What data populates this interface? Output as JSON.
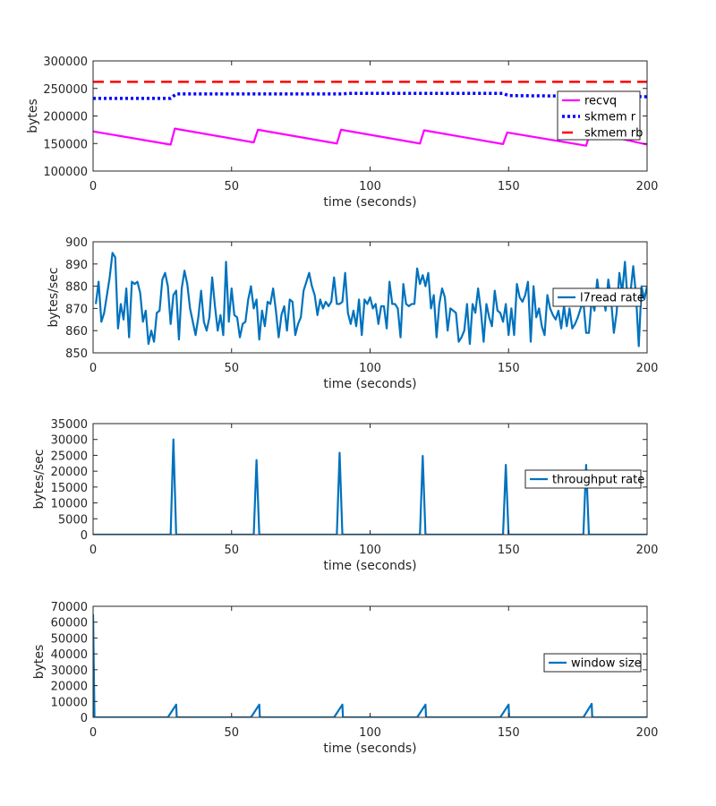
{
  "chart_data": [
    {
      "type": "line",
      "xlabel": "time (seconds)",
      "ylabel": "bytes",
      "xlim": [
        0,
        200
      ],
      "ylim": [
        100000,
        300000
      ],
      "xticks": [
        0,
        50,
        100,
        150,
        200
      ],
      "yticks": [
        100000,
        150000,
        200000,
        250000,
        300000
      ],
      "grid": false,
      "legend_position": "right",
      "series": [
        {
          "name": "recvq",
          "color": "#ff00ff",
          "style": "solid",
          "x": [
            0,
            28,
            29.5,
            58,
            59.5,
            88,
            89.5,
            118,
            119.5,
            148,
            149.5,
            178,
            179.5,
            200
          ],
          "y": [
            172000,
            148000,
            177000,
            152000,
            175000,
            150000,
            175000,
            150000,
            174000,
            149000,
            170000,
            146000,
            171000,
            148000
          ]
        },
        {
          "name": "skmem r",
          "color": "#0000ff",
          "style": "dotted",
          "x": [
            0,
            28,
            30,
            90,
            92,
            148,
            150,
            200
          ],
          "y": [
            232000,
            232000,
            240000,
            240000,
            241000,
            241000,
            237000,
            235000
          ]
        },
        {
          "name": "skmem rb",
          "color": "#ff0000",
          "style": "dashed",
          "x": [
            0,
            200
          ],
          "y": [
            262000,
            262000
          ]
        }
      ]
    },
    {
      "type": "line",
      "xlabel": "time (seconds)",
      "ylabel": "bytes/sec",
      "xlim": [
        0,
        200
      ],
      "ylim": [
        850,
        900
      ],
      "xticks": [
        0,
        50,
        100,
        150,
        200
      ],
      "yticks": [
        850,
        860,
        870,
        880,
        890,
        900
      ],
      "grid": false,
      "legend_position": "right",
      "series": [
        {
          "name": "l7read rate",
          "color": "#0072bd",
          "style": "solid",
          "x": [
            1,
            2,
            3,
            4,
            5,
            6,
            7,
            8,
            9,
            10,
            11,
            12,
            13,
            14,
            15,
            16,
            17,
            18,
            19,
            20,
            21,
            22,
            23,
            24,
            25,
            26,
            27,
            28,
            29,
            30,
            31,
            32,
            33,
            34,
            35,
            36,
            37,
            38,
            39,
            40,
            41,
            42,
            43,
            44,
            45,
            46,
            47,
            48,
            49,
            50,
            51,
            52,
            53,
            54,
            55,
            56,
            57,
            58,
            59,
            60,
            61,
            62,
            63,
            64,
            65,
            66,
            67,
            68,
            69,
            70,
            71,
            72,
            73,
            74,
            75,
            76,
            77,
            78,
            79,
            80,
            81,
            82,
            83,
            84,
            85,
            86,
            87,
            88,
            89,
            90,
            91,
            92,
            93,
            94,
            95,
            96,
            97,
            98,
            99,
            100,
            101,
            102,
            103,
            104,
            105,
            106,
            107,
            108,
            109,
            110,
            111,
            112,
            113,
            114,
            115,
            116,
            117,
            118,
            119,
            120,
            121,
            122,
            123,
            124,
            125,
            126,
            127,
            128,
            129,
            130,
            131,
            132,
            133,
            134,
            135,
            136,
            137,
            138,
            139,
            140,
            141,
            142,
            143,
            144,
            145,
            146,
            147,
            148,
            149,
            150,
            151,
            152,
            153,
            154,
            155,
            156,
            157,
            158,
            159,
            160,
            161,
            162,
            163,
            164,
            165,
            166,
            167,
            168,
            169,
            170,
            171,
            172,
            173,
            174,
            175,
            176,
            177,
            178,
            179,
            180,
            181,
            182,
            183,
            184,
            185,
            186,
            187,
            188,
            189,
            190,
            191,
            192,
            193,
            194,
            195,
            196,
            197,
            198,
            199,
            200
          ],
          "y": [
            872,
            882,
            864,
            868,
            876,
            884,
            895,
            893,
            861,
            872,
            865,
            879,
            857,
            882,
            881,
            882,
            877,
            864,
            869,
            854,
            860,
            855,
            868,
            869,
            883,
            886,
            880,
            863,
            876,
            878,
            856,
            879,
            887,
            881,
            870,
            864,
            858,
            866,
            878,
            864,
            860,
            866,
            884,
            871,
            860,
            867,
            858,
            891,
            864,
            879,
            867,
            866,
            857,
            863,
            864,
            874,
            880,
            870,
            874,
            856,
            869,
            862,
            873,
            872,
            879,
            869,
            857,
            867,
            871,
            860,
            874,
            873,
            858,
            863,
            866,
            878,
            882,
            886,
            880,
            876,
            867,
            874,
            870,
            873,
            871,
            873,
            884,
            872,
            872,
            873,
            886,
            868,
            863,
            869,
            862,
            874,
            858,
            874,
            872,
            875,
            870,
            872,
            863,
            871,
            871,
            861,
            882,
            872,
            872,
            870,
            857,
            881,
            872,
            871,
            872,
            872,
            888,
            881,
            885,
            880,
            886,
            870,
            876,
            857,
            872,
            879,
            875,
            860,
            870,
            869,
            868,
            855,
            857,
            860,
            872,
            854,
            872,
            868,
            879,
            869,
            855,
            872,
            866,
            862,
            878,
            869,
            868,
            864,
            872,
            858,
            870,
            858,
            881,
            875,
            873,
            876,
            882,
            855,
            880,
            866,
            870,
            862,
            858,
            876,
            870,
            867,
            865,
            869,
            861,
            871,
            862,
            870,
            861,
            863,
            866,
            870,
            873,
            859,
            859,
            874,
            869,
            883,
            873,
            878,
            869,
            883,
            874,
            859,
            868,
            886,
            877,
            891,
            873,
            877,
            889,
            876,
            853,
            880,
            874,
            880
          ]
        }
      ]
    },
    {
      "type": "line",
      "xlabel": "time (seconds)",
      "ylabel": "bytes/sec",
      "xlim": [
        0,
        200
      ],
      "ylim": [
        0,
        35000
      ],
      "xticks": [
        0,
        50,
        100,
        150,
        200
      ],
      "yticks": [
        0,
        5000,
        10000,
        15000,
        20000,
        25000,
        30000,
        35000
      ],
      "grid": false,
      "legend_position": "right",
      "series": [
        {
          "name": "throughput rate",
          "color": "#0072bd",
          "style": "solid",
          "x": [
            0,
            28,
            29,
            30,
            58,
            59,
            60,
            88,
            89,
            90,
            118,
            119,
            120,
            148,
            149,
            150,
            177,
            178,
            179,
            200
          ],
          "y": [
            0,
            0,
            30000,
            0,
            0,
            23500,
            0,
            0,
            25800,
            0,
            0,
            24800,
            0,
            0,
            22000,
            0,
            0,
            22000,
            0,
            0
          ]
        }
      ]
    },
    {
      "type": "line",
      "xlabel": "time (seconds)",
      "ylabel": "bytes",
      "xlim": [
        0,
        200
      ],
      "ylim": [
        0,
        70000
      ],
      "xticks": [
        0,
        50,
        100,
        150,
        200
      ],
      "yticks": [
        0,
        10000,
        20000,
        30000,
        40000,
        50000,
        60000,
        70000
      ],
      "grid": false,
      "legend_position": "right",
      "series": [
        {
          "name": "window size",
          "color": "#0072bd",
          "style": "solid",
          "x": [
            0,
            0.5,
            1,
            27,
            30,
            30.2,
            57,
            60,
            60.2,
            87,
            90,
            90.2,
            117,
            120,
            120.2,
            147,
            150,
            150.2,
            177,
            180,
            180.2,
            200
          ],
          "y": [
            65000,
            0,
            0,
            0,
            8000,
            0,
            0,
            8000,
            0,
            0,
            8000,
            0,
            0,
            8000,
            0,
            0,
            8000,
            0,
            0,
            8500,
            0,
            0
          ]
        }
      ]
    }
  ]
}
